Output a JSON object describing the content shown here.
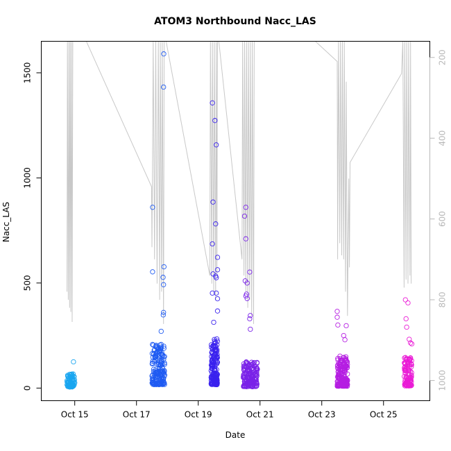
{
  "chart_data": {
    "type": "scatter",
    "title": "ATOM3 Northbound Nacc_LAS",
    "xlabel": "Date",
    "ylabel": "Nacc_LAS",
    "x_axis": {
      "range": [
        "2012-10-13T22:00",
        "2012-10-26T12:00"
      ],
      "ticks": [
        {
          "date": "2012-10-15T00:00",
          "label": "Oct 15"
        },
        {
          "date": "2012-10-17T00:00",
          "label": "Oct 17"
        },
        {
          "date": "2012-10-19T00:00",
          "label": "Oct 19"
        },
        {
          "date": "2012-10-21T00:00",
          "label": "Oct 21"
        },
        {
          "date": "2012-10-23T00:00",
          "label": "Oct 23"
        },
        {
          "date": "2012-10-25T00:00",
          "label": "Oct 25"
        }
      ]
    },
    "y_axis": {
      "range": [
        -60,
        1650
      ],
      "ticks": [
        {
          "value": 0,
          "label": "0"
        },
        {
          "value": 500,
          "label": "500"
        },
        {
          "value": 1000,
          "label": "1000"
        },
        {
          "value": 1500,
          "label": "1500"
        }
      ]
    },
    "y2_axis": {
      "range": [
        1050,
        160
      ],
      "reversed": true,
      "ticks": [
        {
          "value": 200,
          "label": "200"
        },
        {
          "value": 400,
          "label": "400"
        },
        {
          "value": 600,
          "label": "600"
        },
        {
          "value": 800,
          "label": "800"
        },
        {
          "value": 1000,
          "label": "1000"
        }
      ],
      "line_color": "#c8c8c8"
    },
    "scatter_groups": [
      {
        "start": "2012-10-14T18:00",
        "end": "2012-10-15T00:00",
        "color": "#1aa6f0",
        "n": 90,
        "base": 35,
        "spread": 45,
        "outliers": [
          {
            "x": "2012-10-14T23:00",
            "y": 125
          }
        ]
      },
      {
        "start": "2012-10-17T12:00",
        "end": "2012-10-17T22:00",
        "color": "#1f5bf2",
        "n": 170,
        "base": 110,
        "spread": 140,
        "outliers": [
          {
            "x": "2012-10-17T12:30",
            "y": 860
          },
          {
            "x": "2012-10-17T12:30",
            "y": 553
          },
          {
            "x": "2012-10-17T21:10",
            "y": 1590
          },
          {
            "x": "2012-10-17T21:00",
            "y": 1432
          },
          {
            "x": "2012-10-17T21:20",
            "y": 577
          },
          {
            "x": "2012-10-17T20:40",
            "y": 527
          },
          {
            "x": "2012-10-17T21:00",
            "y": 492
          },
          {
            "x": "2012-10-17T21:00",
            "y": 360
          },
          {
            "x": "2012-10-17T20:50",
            "y": 348
          },
          {
            "x": "2012-10-17T19:10",
            "y": 270
          }
        ]
      },
      {
        "start": "2012-10-19T10:00",
        "end": "2012-10-19T15:00",
        "color": "#3a22ee",
        "n": 160,
        "base": 110,
        "spread": 180,
        "outliers": [
          {
            "x": "2012-10-19T11:00",
            "y": 1357
          },
          {
            "x": "2012-10-19T13:00",
            "y": 1273
          },
          {
            "x": "2012-10-19T14:00",
            "y": 1157
          },
          {
            "x": "2012-10-19T11:30",
            "y": 885
          },
          {
            "x": "2012-10-19T13:30",
            "y": 781
          },
          {
            "x": "2012-10-19T11:00",
            "y": 686
          },
          {
            "x": "2012-10-19T15:00",
            "y": 622
          },
          {
            "x": "2012-10-19T15:00",
            "y": 563
          },
          {
            "x": "2012-10-19T11:30",
            "y": 543
          },
          {
            "x": "2012-10-19T13:30",
            "y": 533
          },
          {
            "x": "2012-10-19T14:00",
            "y": 525
          },
          {
            "x": "2012-10-19T11:00",
            "y": 452
          },
          {
            "x": "2012-10-19T14:00",
            "y": 452
          },
          {
            "x": "2012-10-19T15:00",
            "y": 425
          },
          {
            "x": "2012-10-19T15:00",
            "y": 367
          },
          {
            "x": "2012-10-19T12:00",
            "y": 313
          }
        ]
      },
      {
        "start": "2012-10-20T11:00",
        "end": "2012-10-20T22:00",
        "color": "#7a22e8",
        "n": 170,
        "base": 45,
        "spread": 130,
        "outliers": [
          {
            "x": "2012-10-20T13:00",
            "y": 860
          },
          {
            "x": "2012-10-20T12:00",
            "y": 818
          },
          {
            "x": "2012-10-20T13:00",
            "y": 710
          },
          {
            "x": "2012-10-20T16:00",
            "y": 552
          },
          {
            "x": "2012-10-20T12:30",
            "y": 510
          },
          {
            "x": "2012-10-20T14:00",
            "y": 500
          },
          {
            "x": "2012-10-20T13:30",
            "y": 447
          },
          {
            "x": "2012-10-20T13:00",
            "y": 438
          },
          {
            "x": "2012-10-20T14:00",
            "y": 426
          },
          {
            "x": "2012-10-20T16:30",
            "y": 345
          },
          {
            "x": "2012-10-20T16:00",
            "y": 330
          },
          {
            "x": "2012-10-20T16:30",
            "y": 280
          }
        ]
      },
      {
        "start": "2012-10-23T12:00",
        "end": "2012-10-23T20:00",
        "color": "#b51ee2",
        "n": 180,
        "base": 60,
        "spread": 140,
        "outliers": [
          {
            "x": "2012-10-23T12:00",
            "y": 365
          },
          {
            "x": "2012-10-23T12:00",
            "y": 337
          },
          {
            "x": "2012-10-23T12:30",
            "y": 300
          },
          {
            "x": "2012-10-23T19:00",
            "y": 297
          },
          {
            "x": "2012-10-23T17:00",
            "y": 250
          },
          {
            "x": "2012-10-23T18:00",
            "y": 230
          }
        ]
      },
      {
        "start": "2012-10-25T16:00",
        "end": "2012-10-25T22:00",
        "color": "#ea1cd6",
        "n": 110,
        "base": 70,
        "spread": 110,
        "outliers": [
          {
            "x": "2012-10-25T17:00",
            "y": 420
          },
          {
            "x": "2012-10-25T19:00",
            "y": 405
          },
          {
            "x": "2012-10-25T17:30",
            "y": 330
          },
          {
            "x": "2012-10-25T18:00",
            "y": 290
          },
          {
            "x": "2012-10-25T20:00",
            "y": 232
          },
          {
            "x": "2012-10-25T21:00",
            "y": 215
          },
          {
            "x": "2012-10-25T22:00",
            "y": 210
          }
        ]
      }
    ],
    "y2_line": [
      [
        "2012-10-14T18:00",
        780
      ],
      [
        "2012-10-14T18:20",
        160
      ],
      [
        "2012-10-14T19:00",
        800
      ],
      [
        "2012-10-14T19:30",
        160
      ],
      [
        "2012-10-14T20:00",
        820
      ],
      [
        "2012-10-14T20:30",
        160
      ],
      [
        "2012-10-14T21:00",
        830
      ],
      [
        "2012-10-14T21:30",
        160
      ],
      [
        "2012-10-14T22:00",
        855
      ],
      [
        "2012-10-14T22:30",
        160
      ],
      [
        "2012-10-15T09:00",
        160
      ],
      [
        "2012-10-17T11:40",
        520
      ],
      [
        "2012-10-17T12:00",
        670
      ],
      [
        "2012-10-17T12:30",
        440
      ],
      [
        "2012-10-17T13:00",
        160
      ],
      [
        "2012-10-17T14:00",
        700
      ],
      [
        "2012-10-17T15:00",
        160
      ],
      [
        "2012-10-17T16:00",
        760
      ],
      [
        "2012-10-17T17:00",
        160
      ],
      [
        "2012-10-17T18:00",
        800
      ],
      [
        "2012-10-17T18:30",
        160
      ],
      [
        "2012-10-17T19:30",
        780
      ],
      [
        "2012-10-17T20:00",
        160
      ],
      [
        "2012-10-17T21:00",
        860
      ],
      [
        "2012-10-17T21:30",
        160
      ],
      [
        "2012-10-17T23:00",
        160
      ],
      [
        "2012-10-19T09:00",
        740
      ],
      [
        "2012-10-19T09:30",
        160
      ],
      [
        "2012-10-19T10:30",
        760
      ],
      [
        "2012-10-19T11:00",
        160
      ],
      [
        "2012-10-19T12:00",
        780
      ],
      [
        "2012-10-19T12:30",
        160
      ],
      [
        "2012-10-19T13:30",
        800
      ],
      [
        "2012-10-19T14:00",
        160
      ],
      [
        "2012-10-19T14:30",
        740
      ],
      [
        "2012-10-19T15:00",
        160
      ],
      [
        "2012-10-19T16:00",
        160
      ],
      [
        "2012-10-20T10:00",
        700
      ],
      [
        "2012-10-20T10:30",
        160
      ],
      [
        "2012-10-20T11:30",
        740
      ],
      [
        "2012-10-20T12:00",
        160
      ],
      [
        "2012-10-20T13:00",
        780
      ],
      [
        "2012-10-20T13:30",
        160
      ],
      [
        "2012-10-20T14:30",
        820
      ],
      [
        "2012-10-20T15:00",
        160
      ],
      [
        "2012-10-20T16:00",
        800
      ],
      [
        "2012-10-20T16:30",
        160
      ],
      [
        "2012-10-20T17:30",
        840
      ],
      [
        "2012-10-20T18:00",
        160
      ],
      [
        "2012-10-20T19:00",
        860
      ],
      [
        "2012-10-20T19:30",
        160
      ],
      [
        "2012-10-22T19:00",
        160
      ],
      [
        "2012-10-23T12:00",
        210
      ],
      [
        "2012-10-23T12:20",
        700
      ],
      [
        "2012-10-23T13:00",
        160
      ],
      [
        "2012-10-23T14:00",
        660
      ],
      [
        "2012-10-23T14:30",
        160
      ],
      [
        "2012-10-23T15:30",
        690
      ],
      [
        "2012-10-23T16:00",
        160
      ],
      [
        "2012-10-23T17:00",
        700
      ],
      [
        "2012-10-23T17:30",
        160
      ],
      [
        "2012-10-23T18:30",
        780
      ],
      [
        "2012-10-23T19:00",
        260
      ],
      [
        "2012-10-23T20:00",
        840
      ],
      [
        "2012-10-23T21:00",
        500
      ],
      [
        "2012-10-23T21:30",
        720
      ],
      [
        "2012-10-23T22:00",
        460
      ],
      [
        "2012-10-25T14:00",
        240
      ],
      [
        "2012-10-25T15:00",
        160
      ],
      [
        "2012-10-25T16:00",
        770
      ],
      [
        "2012-10-25T16:30",
        160
      ],
      [
        "2012-10-25T17:30",
        750
      ],
      [
        "2012-10-25T18:00",
        160
      ],
      [
        "2012-10-25T19:00",
        760
      ],
      [
        "2012-10-25T19:30",
        160
      ],
      [
        "2012-10-25T20:30",
        740
      ],
      [
        "2012-10-25T21:00",
        160
      ],
      [
        "2012-10-25T21:30",
        760
      ]
    ],
    "grid": false,
    "legend": "none"
  }
}
